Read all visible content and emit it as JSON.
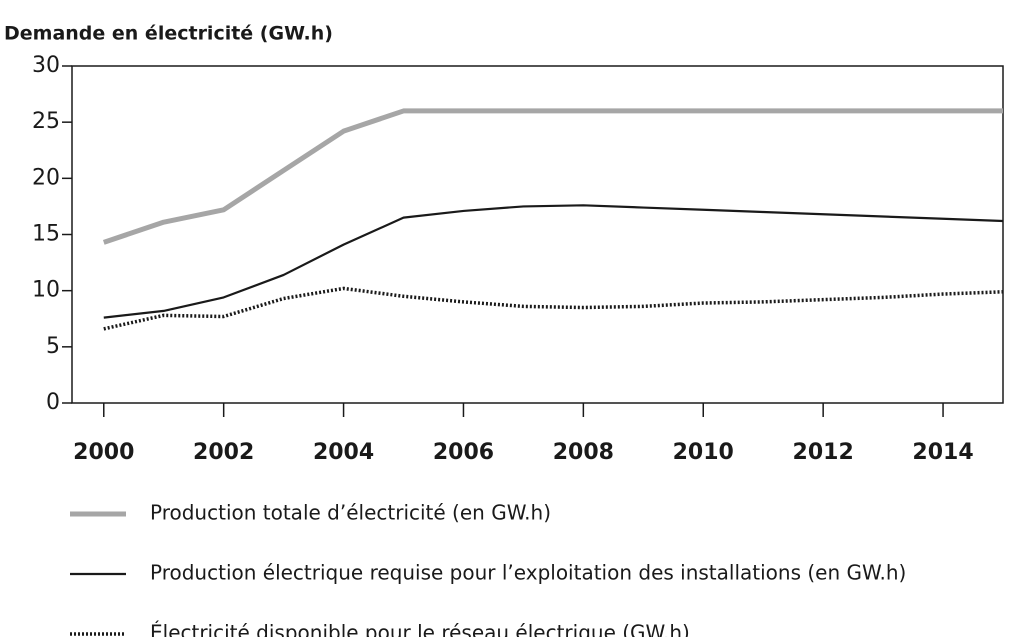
{
  "chart_data": {
    "type": "line",
    "title": "Demande en électricité (GW.h)",
    "x": [
      2000,
      2001,
      2002,
      2003,
      2004,
      2005,
      2006,
      2007,
      2008,
      2009,
      2010,
      2011,
      2012,
      2013,
      2014,
      2015
    ],
    "series": [
      {
        "name": "Production totale d’électricité (en GW.h)",
        "color": "#a6a6a6",
        "width": 5,
        "dash": "none",
        "values": [
          14.3,
          16.1,
          17.2,
          20.7,
          24.2,
          26.0,
          26.0,
          26.0,
          26.0,
          26.0,
          26.0,
          26.0,
          26.0,
          26.0,
          26.0,
          26.0
        ]
      },
      {
        "name": "Production électrique requise pour l’exploitation des installations (en GW.h)",
        "color": "#1a1a1a",
        "width": 2.2,
        "dash": "none",
        "values": [
          7.6,
          8.2,
          9.4,
          11.4,
          14.1,
          16.5,
          17.1,
          17.5,
          17.6,
          17.4,
          17.2,
          17.0,
          16.8,
          16.6,
          16.4,
          16.2
        ]
      },
      {
        "name": "Électricité disponible pour le réseau électrique (GW.h)",
        "color": "#1a1a1a",
        "width": 3.5,
        "dash": "2 2",
        "values": [
          6.6,
          7.8,
          7.7,
          9.3,
          10.2,
          9.5,
          9.0,
          8.6,
          8.5,
          8.6,
          8.9,
          9.0,
          9.2,
          9.4,
          9.7,
          9.9
        ]
      }
    ],
    "xlim": [
      1999.47,
      2015
    ],
    "xticks": [
      2000,
      2002,
      2004,
      2006,
      2008,
      2010,
      2012,
      2014
    ],
    "ylim": [
      0,
      30
    ],
    "yticks": [
      0,
      5,
      10,
      15,
      20,
      25,
      30
    ],
    "grid": false,
    "legend": "bottom"
  }
}
